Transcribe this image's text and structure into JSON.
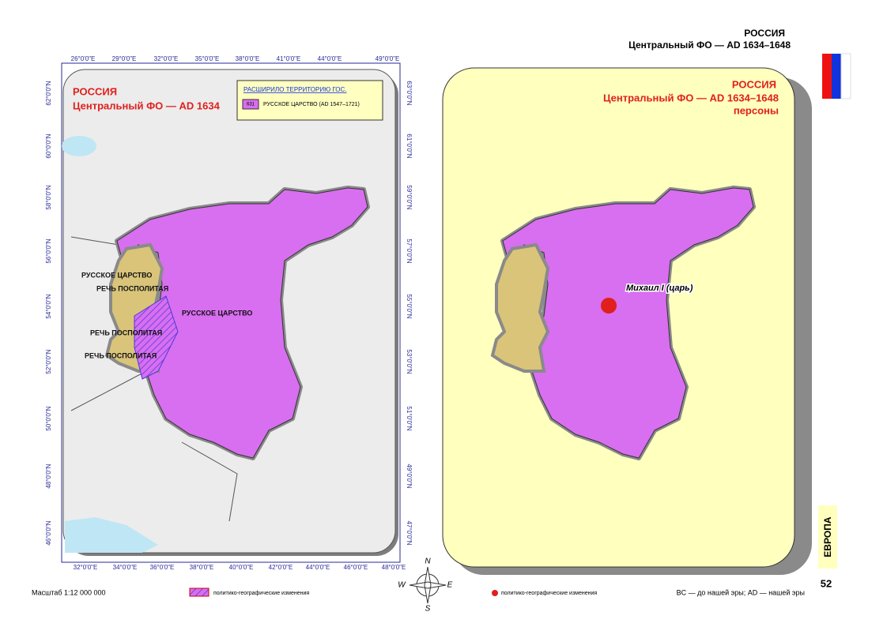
{
  "header": {
    "title": "РОССИЯ",
    "subtitle": "Центральный ФО — AD 1634–1648"
  },
  "left_map": {
    "title": "РОССИЯ",
    "subtitle": "Центральный ФО — AD 1634",
    "legend": {
      "title": "РАСШИРИЛО ТЕРРИТОРИЮ ГОС.",
      "code": "631",
      "label": "РУССКОЕ ЦАРСТВО (AD 1547–1721)"
    },
    "labels": [
      "РУССКОЕ ЦАРСТВО",
      "РУССКОЕ ЦАРСТВО",
      "РЕЧЬ ПОСПОЛИТАЯ",
      "РЕЧЬ ПОСПОЛИТАЯ",
      "РЕЧЬ ПОСПОЛИТАЯ"
    ],
    "top_ticks": [
      "26°0'0\"E",
      "29°0'0\"E",
      "32°0'0\"E",
      "35°0'0\"E",
      "38°0'0\"E",
      "41°0'0\"E",
      "44°0'0\"E",
      "49°0'0\"E"
    ],
    "bottom_ticks": [
      "32°0'0\"E",
      "34°0'0\"E",
      "36°0'0\"E",
      "38°0'0\"E",
      "40°0'0\"E",
      "42°0'0\"E",
      "44°0'0\"E",
      "46°0'0\"E",
      "48°0'0\"E"
    ],
    "left_ticks": [
      "62°0'0\"N",
      "60°0'0\"N",
      "58°0'0\"N",
      "56°0'0\"N",
      "54°0'0\"N",
      "52°0'0\"N",
      "50°0'0\"N",
      "48°0'0\"N",
      "46°0'0\"N"
    ],
    "right_ticks": [
      "63°0'0\"N",
      "61°0'0\"N",
      "59°0'0\"N",
      "57°0'0\"N",
      "55°0'0\"N",
      "53°0'0\"N",
      "51°0'0\"N",
      "49°0'0\"N",
      "47°0'0\"N"
    ]
  },
  "right_map": {
    "title": "РОССИЯ",
    "subtitle": "Центральный ФО — AD 1634–1648",
    "note": "персоны",
    "person": "Михаил I (царь)"
  },
  "compass": {
    "n": "N",
    "e": "E",
    "s": "S",
    "w": "W"
  },
  "footer": {
    "scale": "Масштаб 1:12 000 000",
    "hatch_legend": "политико-географические изменения",
    "dot_legend": "политико-географические изменения",
    "era_note": "BC — до нашей эры; AD — нашей эры",
    "section": "ЕВРОПА",
    "page": "52"
  }
}
